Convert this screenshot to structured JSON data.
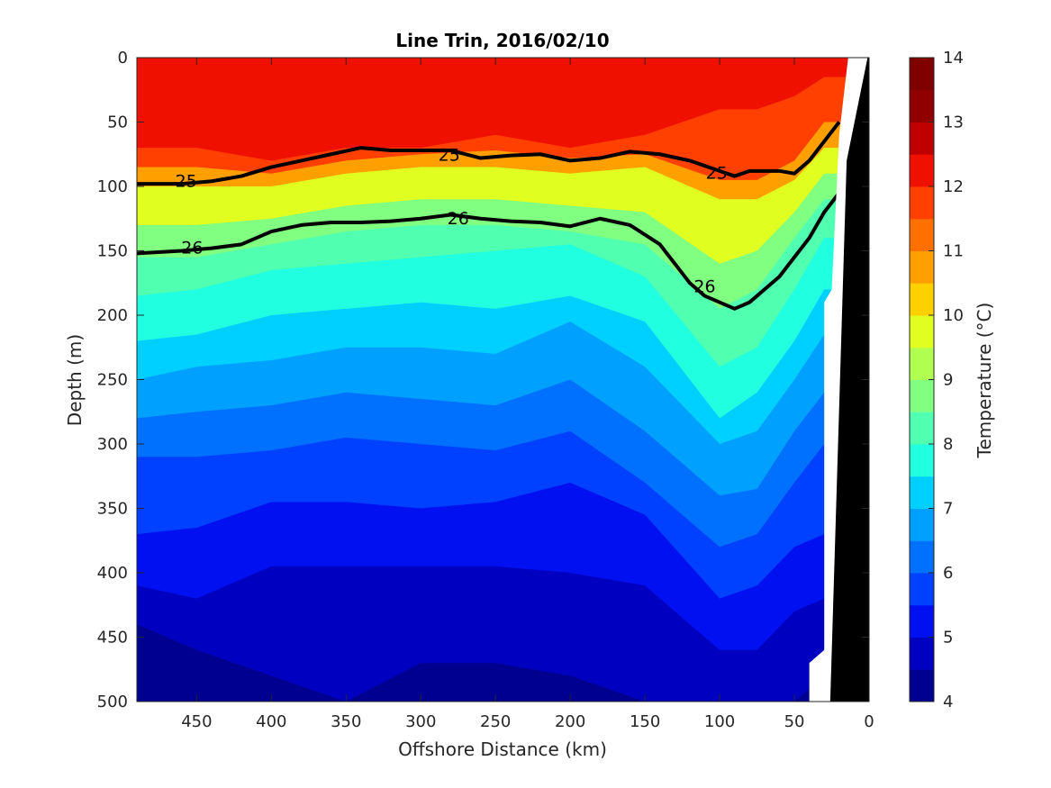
{
  "chart_data": {
    "type": "contour",
    "title": "Line Trin, 2016/02/10",
    "xlabel": "Offshore Distance (km)",
    "ylabel": "Depth (m)",
    "xlim": [
      490,
      0
    ],
    "ylim": [
      0,
      500
    ],
    "xticks": [
      450,
      400,
      350,
      300,
      250,
      200,
      150,
      100,
      50,
      0
    ],
    "yticks": [
      0,
      50,
      100,
      150,
      200,
      250,
      300,
      350,
      400,
      450,
      500
    ],
    "colorbar": {
      "label": "Temperature (°C)",
      "range": [
        4,
        14
      ],
      "ticks": [
        4,
        5,
        6,
        7,
        8,
        9,
        10,
        11,
        12,
        13,
        14
      ],
      "levels": [
        "#000090",
        "#0000c0",
        "#0010f0",
        "#0040ff",
        "#0070ff",
        "#00a0ff",
        "#00d0ff",
        "#20ffe0",
        "#50ffb0",
        "#80ff80",
        "#b0ff50",
        "#e0ff20",
        "#ffd000",
        "#ffa000",
        "#ff7000",
        "#ff4000",
        "#f01000",
        "#c00000",
        "#900000",
        "#800000"
      ]
    },
    "temperature_band_depths_m": {
      "x_km": [
        490,
        450,
        400,
        350,
        300,
        250,
        200,
        150,
        100,
        75,
        50,
        30
      ],
      "bands": [
        {
          "value": 12.0,
          "depth": [
            70,
            70,
            80,
            70,
            70,
            60,
            70,
            60,
            40,
            40,
            30,
            15
          ]
        },
        {
          "value": 11.0,
          "depth": [
            85,
            85,
            90,
            80,
            75,
            72,
            78,
            75,
            95,
            95,
            80,
            50
          ]
        },
        {
          "value": 10.0,
          "depth": [
            100,
            100,
            100,
            90,
            85,
            85,
            90,
            85,
            110,
            110,
            95,
            70
          ]
        },
        {
          "value": 9.0,
          "depth": [
            130,
            130,
            125,
            115,
            110,
            110,
            115,
            120,
            160,
            150,
            120,
            90
          ]
        },
        {
          "value": 8.5,
          "depth": [
            155,
            155,
            145,
            135,
            130,
            130,
            135,
            145,
            195,
            180,
            140,
            110
          ]
        },
        {
          "value": 8.0,
          "depth": [
            185,
            180,
            165,
            160,
            155,
            150,
            145,
            170,
            240,
            225,
            180,
            140
          ]
        },
        {
          "value": 7.5,
          "depth": [
            220,
            215,
            200,
            195,
            190,
            195,
            185,
            205,
            280,
            260,
            220,
            180
          ]
        },
        {
          "value": 7.0,
          "depth": [
            250,
            240,
            235,
            225,
            225,
            230,
            205,
            240,
            300,
            290,
            250,
            215
          ]
        },
        {
          "value": 6.5,
          "depth": [
            280,
            275,
            270,
            260,
            265,
            270,
            250,
            290,
            340,
            335,
            290,
            260
          ]
        },
        {
          "value": 6.0,
          "depth": [
            310,
            310,
            305,
            295,
            300,
            305,
            290,
            330,
            380,
            370,
            330,
            300
          ]
        },
        {
          "value": 5.5,
          "depth": [
            370,
            365,
            345,
            345,
            350,
            345,
            330,
            355,
            420,
            410,
            380,
            370
          ]
        },
        {
          "value": 5.0,
          "depth": [
            410,
            420,
            395,
            395,
            395,
            395,
            400,
            410,
            460,
            460,
            430,
            420
          ]
        },
        {
          "value": 4.5,
          "depth": [
            440,
            460,
            480,
            500,
            470,
            470,
            480,
            500,
            500,
            500,
            500,
            480
          ]
        }
      ]
    },
    "density_contours": [
      {
        "label": "25",
        "x_km": [
          490,
          460,
          440,
          420,
          400,
          380,
          360,
          340,
          320,
          300,
          280,
          260,
          240,
          220,
          200,
          180,
          160,
          140,
          120,
          100,
          90,
          80,
          60,
          50,
          40,
          30,
          20
        ],
        "depth": [
          98,
          98,
          96,
          92,
          85,
          80,
          75,
          70,
          72,
          72,
          72,
          78,
          76,
          75,
          80,
          78,
          73,
          75,
          80,
          88,
          92,
          88,
          88,
          90,
          80,
          65,
          50
        ]
      },
      {
        "label": "26",
        "x_km": [
          490,
          460,
          440,
          420,
          400,
          380,
          360,
          340,
          320,
          300,
          280,
          260,
          240,
          220,
          200,
          180,
          160,
          140,
          130,
          120,
          110,
          100,
          90,
          80,
          70,
          60,
          50,
          40,
          30,
          20
        ],
        "depth": [
          152,
          150,
          148,
          145,
          135,
          130,
          128,
          128,
          127,
          125,
          122,
          125,
          127,
          128,
          131,
          125,
          130,
          145,
          160,
          175,
          185,
          190,
          195,
          190,
          180,
          170,
          155,
          140,
          120,
          105
        ]
      }
    ],
    "contour_labels": [
      {
        "text": "25",
        "x_km": 457,
        "depth": 96
      },
      {
        "text": "25",
        "x_km": 281,
        "depth": 76
      },
      {
        "text": "25",
        "x_km": 102,
        "depth": 90
      },
      {
        "text": "26",
        "x_km": 453,
        "depth": 148
      },
      {
        "text": "26",
        "x_km": 275,
        "depth": 125
      },
      {
        "text": "26",
        "x_km": 110,
        "depth": 178
      }
    ]
  }
}
